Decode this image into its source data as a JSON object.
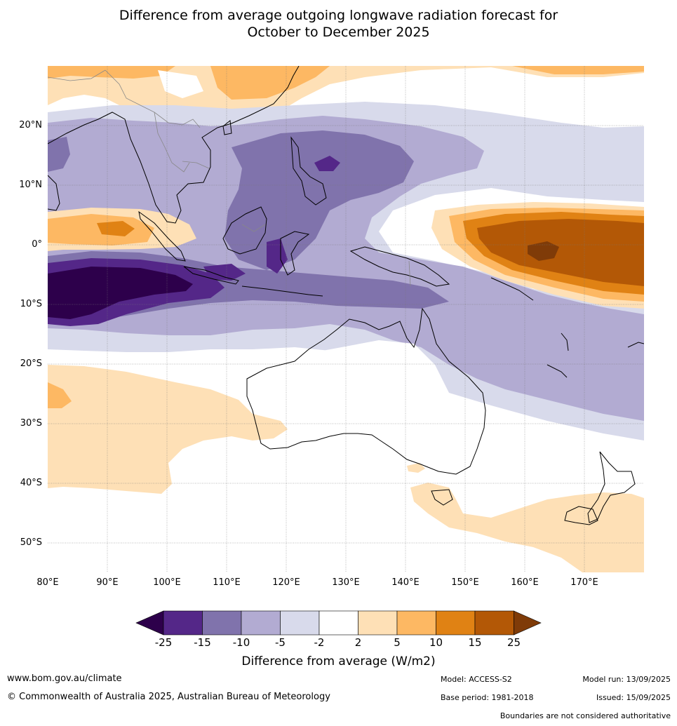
{
  "title_line1": "Difference from average outgoing longwave radiation forecast for",
  "title_line2": "October to December 2025",
  "map": {
    "lon_labels": [
      "80°E",
      "90°E",
      "100°E",
      "110°E",
      "120°E",
      "130°E",
      "140°E",
      "150°E",
      "160°E",
      "170°E"
    ],
    "lat_labels": [
      "20°N",
      "10°N",
      "0°",
      "10°S",
      "20°S",
      "30°S",
      "40°S",
      "50°S"
    ]
  },
  "legend": {
    "ticks": [
      "-25",
      "-15",
      "-10",
      "-5",
      "-2",
      "2",
      "5",
      "10",
      "15",
      "25"
    ],
    "colors": {
      "below_-25": "#2d004b",
      "-25_-15": "#542788",
      "-15_-10": "#8073ac",
      "-10_-5": "#b2abd2",
      "-5_-2": "#d8daeb",
      "-2_2": "#ffffff",
      "2_5": "#fee0b6",
      "5_10": "#fdb863",
      "10_15": "#e08214",
      "15_25": "#b35806",
      "above_25": "#7f3b08"
    },
    "title": "Difference from average (W/m2)"
  },
  "footer": {
    "website": "www.bom.gov.au/climate",
    "copyright": "© Commonwealth of Australia 2025, Australian Bureau of Meteorology",
    "model": "Model: ACCESS-S2",
    "base_period": "Base period: 1981-2018",
    "model_run": "Model run: 13/09/2025",
    "issued": "Issued: 15/09/2025",
    "disclaimer": "Boundaries are not considered authoritative"
  }
}
